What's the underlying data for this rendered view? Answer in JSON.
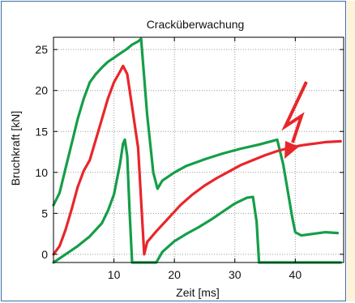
{
  "chart_data": {
    "type": "line",
    "title": "Cracküberwachung",
    "xlabel": "Zeit [ms]",
    "ylabel": "Bruchkraft [kN]",
    "xlim": [
      0,
      48
    ],
    "ylim": [
      -1,
      26.5
    ],
    "xticks": [
      10,
      20,
      30,
      40
    ],
    "yticks": [
      0,
      5,
      10,
      15,
      20,
      25
    ],
    "grid": true,
    "colors": {
      "red": "#e8262b",
      "green": "#159e49",
      "axis": "#000000",
      "grid": "#9a9a9a",
      "frame": "#3a6ea5",
      "strip": "#fdf3d9"
    },
    "series": [
      {
        "color": "#159e49",
        "points": [
          [
            0,
            6
          ],
          [
            1,
            7.5
          ],
          [
            2,
            10.5
          ],
          [
            3,
            13.5
          ],
          [
            4,
            16.5
          ],
          [
            5,
            19
          ],
          [
            6,
            21
          ],
          [
            7,
            22
          ],
          [
            8,
            22.8
          ],
          [
            9,
            23.5
          ],
          [
            10,
            24
          ],
          [
            11,
            24.5
          ],
          [
            12,
            25
          ],
          [
            13,
            25.6
          ],
          [
            14,
            26
          ],
          [
            14.5,
            26.3
          ],
          [
            15.5,
            17
          ],
          [
            16.5,
            10
          ],
          [
            17.2,
            8
          ],
          [
            18,
            9
          ],
          [
            20,
            10
          ],
          [
            22,
            10.8
          ],
          [
            25,
            11.6
          ],
          [
            28,
            12.3
          ],
          [
            31,
            12.9
          ],
          [
            34,
            13.4
          ],
          [
            37,
            14
          ],
          [
            38,
            11
          ],
          [
            39.5,
            4.5
          ],
          [
            40,
            2.7
          ],
          [
            41,
            2.3
          ],
          [
            43,
            2.5
          ],
          [
            45,
            2.7
          ],
          [
            47,
            2.6
          ]
        ]
      },
      {
        "color": "#e8262b",
        "points": [
          [
            0,
            0
          ],
          [
            1,
            1
          ],
          [
            2,
            3
          ],
          [
            3,
            5.5
          ],
          [
            4,
            8.2
          ],
          [
            5,
            10.2
          ],
          [
            6,
            11.5
          ],
          [
            7,
            14
          ],
          [
            8,
            16.5
          ],
          [
            9,
            19
          ],
          [
            10,
            21
          ],
          [
            11,
            22.3
          ],
          [
            11.5,
            23
          ],
          [
            12.2,
            22
          ],
          [
            13,
            18
          ],
          [
            14,
            13
          ],
          [
            14.7,
            4
          ],
          [
            15,
            0
          ],
          [
            15.5,
            1.5
          ],
          [
            17,
            2.8
          ],
          [
            19,
            4.4
          ],
          [
            21,
            6
          ],
          [
            23,
            7.3
          ],
          [
            25,
            8.4
          ],
          [
            27,
            9.3
          ],
          [
            29,
            10.1
          ],
          [
            31,
            10.9
          ],
          [
            33,
            11.5
          ],
          [
            35,
            12.1
          ],
          [
            37,
            12.6
          ],
          [
            39,
            13
          ],
          [
            41,
            13.3
          ],
          [
            43,
            13.5
          ],
          [
            45,
            13.7
          ],
          [
            47.5,
            13.8
          ]
        ]
      },
      {
        "color": "#159e49",
        "points": [
          [
            0,
            -1
          ],
          [
            2,
            0
          ],
          [
            4,
            1
          ],
          [
            6,
            2.2
          ],
          [
            8,
            3.8
          ],
          [
            9,
            5.3
          ],
          [
            10,
            7.3
          ],
          [
            11,
            11
          ],
          [
            11.5,
            13.5
          ],
          [
            11.8,
            14
          ],
          [
            12.2,
            12
          ],
          [
            12.6,
            5
          ],
          [
            13,
            -1
          ],
          [
            13.5,
            -1
          ],
          [
            17,
            -1
          ],
          [
            18,
            0.3
          ],
          [
            20,
            1.6
          ],
          [
            22,
            2.5
          ],
          [
            24,
            3.3
          ],
          [
            26,
            4.2
          ],
          [
            28,
            5.2
          ],
          [
            30,
            6.2
          ],
          [
            32,
            6.9
          ],
          [
            33,
            7
          ],
          [
            33.6,
            4
          ],
          [
            34,
            -1
          ],
          [
            35,
            -1
          ],
          [
            47.5,
            -1
          ]
        ]
      }
    ],
    "annotation": {
      "kind": "lightning",
      "color": "#e8262b"
    }
  }
}
